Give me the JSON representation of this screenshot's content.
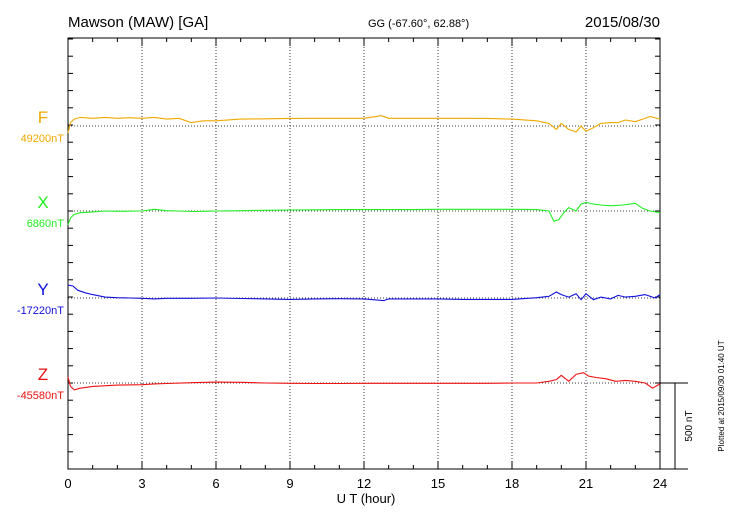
{
  "header": {
    "station": "Mawson (MAW)  [GA]",
    "coords": "GG (-67.60°,  62.88°)",
    "date": "2015/08/30"
  },
  "footer": {
    "plotted_note": "Plotted at 2015/09/30 01:40 UT",
    "scale_label": "500 nT"
  },
  "chart_data": {
    "type": "line",
    "xlabel": "U T (hour)",
    "xlim": [
      0,
      24
    ],
    "xticks": [
      "0",
      "3",
      "6",
      "9",
      "12",
      "15",
      "18",
      "21",
      "24"
    ],
    "grid": "dotted vertical lines every 3 hours; dotted baseline per trace",
    "units": "nT",
    "scale_bar_nT": 500,
    "series": [
      {
        "name": "F",
        "baseline_label": "49200nT",
        "baseline": 49200,
        "color": "#f0a800",
        "x": [
          0,
          0.1,
          0.25,
          0.5,
          1,
          1.5,
          2,
          2.5,
          3,
          3.5,
          4,
          4.5,
          5,
          5.5,
          6,
          7,
          8,
          9,
          10,
          11,
          12,
          12.7,
          13,
          14,
          15,
          16,
          17,
          18,
          19,
          19.5,
          19.8,
          20,
          20.3,
          20.6,
          20.8,
          21,
          21.3,
          21.6,
          22,
          22.3,
          22.6,
          23,
          23.3,
          23.6,
          24
        ],
        "values": [
          49160,
          49220,
          49240,
          49250,
          49245,
          49250,
          49245,
          49248,
          49245,
          49250,
          49240,
          49245,
          49220,
          49230,
          49230,
          49240,
          49242,
          49244,
          49245,
          49245,
          49245,
          49260,
          49245,
          49245,
          49245,
          49245,
          49244,
          49240,
          49230,
          49215,
          49180,
          49215,
          49180,
          49165,
          49200,
          49170,
          49190,
          49215,
          49220,
          49220,
          49235,
          49225,
          49240,
          49255,
          49240
        ]
      },
      {
        "name": "X",
        "baseline_label": "6860nT",
        "baseline": 6860,
        "color": "#22ee22",
        "x": [
          0,
          0.1,
          0.25,
          0.5,
          1,
          1.5,
          2,
          3,
          3.5,
          4,
          4.5,
          5,
          5.5,
          6,
          7,
          8,
          9,
          10,
          11,
          12,
          13,
          14,
          15,
          16,
          17,
          18,
          19,
          19.5,
          19.7,
          19.9,
          20.1,
          20.3,
          20.6,
          20.8,
          21,
          21.3,
          21.6,
          22,
          22.5,
          23,
          23.3,
          23.6,
          24
        ],
        "values": [
          6780,
          6820,
          6840,
          6850,
          6855,
          6860,
          6858,
          6860,
          6870,
          6862,
          6860,
          6857,
          6858,
          6860,
          6862,
          6864,
          6866,
          6867,
          6868,
          6868,
          6868,
          6868,
          6870,
          6870,
          6870,
          6870,
          6868,
          6860,
          6800,
          6810,
          6850,
          6880,
          6860,
          6900,
          6910,
          6900,
          6895,
          6890,
          6895,
          6905,
          6875,
          6860,
          6850
        ]
      },
      {
        "name": "Y",
        "baseline_label": "-17220nT",
        "baseline": -17220,
        "color": "#1010dd",
        "x": [
          0,
          0.2,
          0.4,
          0.7,
          1,
          1.5,
          2,
          2.5,
          3,
          3.5,
          4,
          5,
          6,
          7,
          8,
          9,
          10,
          11,
          12,
          12.8,
          13,
          14,
          15,
          16,
          17,
          18,
          19,
          19.5,
          19.8,
          20,
          20.3,
          20.6,
          20.8,
          21,
          21.3,
          21.6,
          22,
          22.3,
          22.6,
          23,
          23.4,
          23.8,
          24
        ],
        "values": [
          -17145,
          -17150,
          -17175,
          -17190,
          -17200,
          -17215,
          -17218,
          -17220,
          -17222,
          -17225,
          -17222,
          -17222,
          -17220,
          -17223,
          -17225,
          -17228,
          -17225,
          -17224,
          -17225,
          -17235,
          -17225,
          -17225,
          -17225,
          -17228,
          -17228,
          -17228,
          -17218,
          -17210,
          -17185,
          -17200,
          -17215,
          -17195,
          -17230,
          -17195,
          -17230,
          -17215,
          -17225,
          -17205,
          -17215,
          -17210,
          -17200,
          -17220,
          -17200
        ]
      },
      {
        "name": "Z",
        "baseline_label": "-45580nT",
        "baseline": -45580,
        "color": "#ee1111",
        "x": [
          0,
          0.1,
          0.25,
          0.5,
          1,
          2,
          3,
          3.5,
          4,
          5,
          6,
          7,
          8,
          9,
          10,
          11,
          12,
          13,
          14,
          15,
          16,
          17,
          18,
          19,
          19.5,
          19.8,
          20,
          20.3,
          20.6,
          20.9,
          21.1,
          21.4,
          21.8,
          22.2,
          22.6,
          23,
          23.4,
          23.7,
          24
        ],
        "values": [
          -45545,
          -45600,
          -45620,
          -45610,
          -45600,
          -45592,
          -45590,
          -45585,
          -45583,
          -45578,
          -45575,
          -45576,
          -45580,
          -45582,
          -45583,
          -45583,
          -45582,
          -45582,
          -45582,
          -45582,
          -45582,
          -45582,
          -45580,
          -45580,
          -45570,
          -45560,
          -45535,
          -45570,
          -45530,
          -45520,
          -45540,
          -45548,
          -45555,
          -45570,
          -45565,
          -45570,
          -45580,
          -45610,
          -45585
        ]
      }
    ]
  }
}
